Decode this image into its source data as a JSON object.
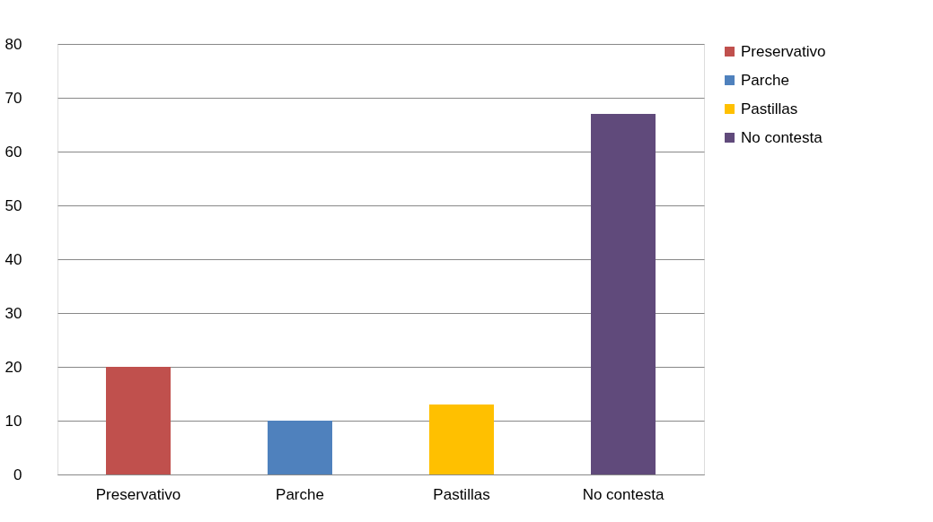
{
  "chart_data": {
    "type": "bar",
    "categories": [
      "Preservativo",
      "Parche",
      "Pastillas",
      "No contesta"
    ],
    "series": [
      {
        "name": "Preservativo",
        "color": "#c0504d",
        "values": [
          20,
          null,
          null,
          null
        ]
      },
      {
        "name": "Parche",
        "color": "#4f81bd",
        "values": [
          null,
          10,
          null,
          null
        ]
      },
      {
        "name": "Pastillas",
        "color": "#ffc000",
        "values": [
          null,
          null,
          13,
          null
        ]
      },
      {
        "name": "No contesta",
        "color": "#604a7b",
        "values": [
          null,
          null,
          null,
          67
        ]
      }
    ],
    "ylim": [
      0,
      80
    ],
    "yticks": [
      0,
      10,
      20,
      30,
      40,
      50,
      60,
      70,
      80
    ],
    "grid": "y",
    "legend": "right"
  }
}
